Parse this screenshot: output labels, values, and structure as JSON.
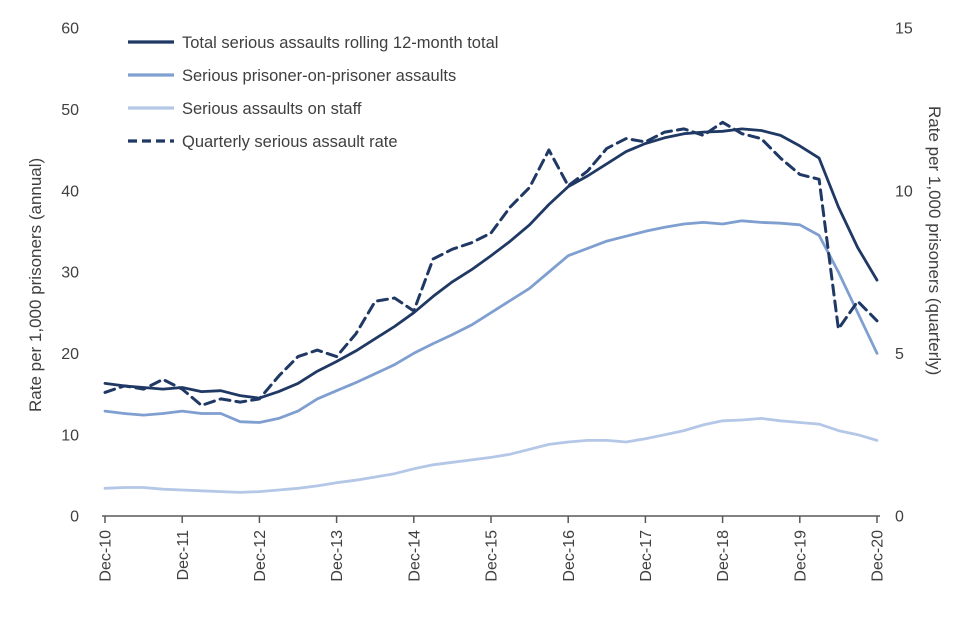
{
  "chart_data": {
    "type": "line",
    "title": "",
    "x_tick_labels": [
      "Dec-10",
      "Dec-11",
      "Dec-12",
      "Dec-13",
      "Dec-14",
      "Dec-15",
      "Dec-16",
      "Dec-17",
      "Dec-18",
      "Dec-19",
      "Dec-20"
    ],
    "x_points_per_tick": 4,
    "x_frequency": "quarterly",
    "left_axis": {
      "label": "Rate per 1,000 prisoners (annual)",
      "min": 0,
      "max": 60,
      "ticks": [
        0,
        10,
        20,
        30,
        40,
        50,
        60
      ]
    },
    "right_axis": {
      "label": "Rate per 1,000 prisoners (quarterly)",
      "min": 0,
      "max": 15,
      "ticks": [
        0,
        5,
        10,
        15
      ]
    },
    "legend_position": "top-left-inside",
    "grid": false,
    "style": {
      "axis_color": "#595959",
      "text_color": "#404040",
      "background": "#ffffff"
    },
    "series": [
      {
        "name": "Total serious assaults rolling 12-month total",
        "axis": "left",
        "style": "solid",
        "color": "#1f3864",
        "width": 2.8,
        "values": [
          16.3,
          16.0,
          15.8,
          15.6,
          15.8,
          15.3,
          15.4,
          14.8,
          14.5,
          15.3,
          16.3,
          17.8,
          19.0,
          20.3,
          21.8,
          23.3,
          25.0,
          27.0,
          28.8,
          30.3,
          32.0,
          33.8,
          35.8,
          38.3,
          40.5,
          41.8,
          43.3,
          44.8,
          45.8,
          46.5,
          47.0,
          47.2,
          47.3,
          47.6,
          47.4,
          46.8,
          45.5,
          44.0,
          38.0,
          33.0,
          29.0
        ]
      },
      {
        "name": "Serious prisoner-on-prisoner assaults",
        "axis": "left",
        "style": "solid",
        "color": "#7f9fd0",
        "width": 2.8,
        "values": [
          12.9,
          12.6,
          12.4,
          12.6,
          12.9,
          12.6,
          12.6,
          11.6,
          11.5,
          12.0,
          12.9,
          14.4,
          15.4,
          16.4,
          17.5,
          18.6,
          20.0,
          21.2,
          22.3,
          23.5,
          25.0,
          26.5,
          28.0,
          30.0,
          32.0,
          32.9,
          33.8,
          34.4,
          35.0,
          35.5,
          35.9,
          36.1,
          35.9,
          36.3,
          36.1,
          36.0,
          35.8,
          34.5,
          30.0,
          25.0,
          20.0
        ]
      },
      {
        "name": "Serious assaults on staff",
        "axis": "left",
        "style": "solid",
        "color": "#b4c7e7",
        "width": 2.8,
        "values": [
          3.4,
          3.5,
          3.5,
          3.3,
          3.2,
          3.1,
          3.0,
          2.9,
          3.0,
          3.2,
          3.4,
          3.7,
          4.1,
          4.4,
          4.8,
          5.2,
          5.8,
          6.3,
          6.6,
          6.9,
          7.2,
          7.6,
          8.2,
          8.8,
          9.1,
          9.3,
          9.3,
          9.1,
          9.5,
          10.0,
          10.5,
          11.2,
          11.7,
          11.8,
          12.0,
          11.7,
          11.5,
          11.3,
          10.5,
          10.0,
          9.3
        ]
      },
      {
        "name": "Quarterly serious assault rate",
        "axis": "right",
        "style": "dashed",
        "color": "#1f3864",
        "width": 3,
        "values": [
          3.8,
          4.0,
          3.9,
          4.2,
          3.9,
          3.4,
          3.6,
          3.5,
          3.6,
          4.3,
          4.9,
          5.1,
          4.9,
          5.6,
          6.6,
          6.7,
          6.3,
          7.9,
          8.2,
          8.4,
          8.7,
          9.5,
          10.1,
          11.25,
          10.15,
          10.6,
          11.3,
          11.6,
          11.5,
          11.8,
          11.9,
          11.7,
          12.1,
          11.75,
          11.6,
          11.0,
          10.5,
          10.35,
          5.75,
          6.6,
          6.0
        ]
      }
    ]
  }
}
